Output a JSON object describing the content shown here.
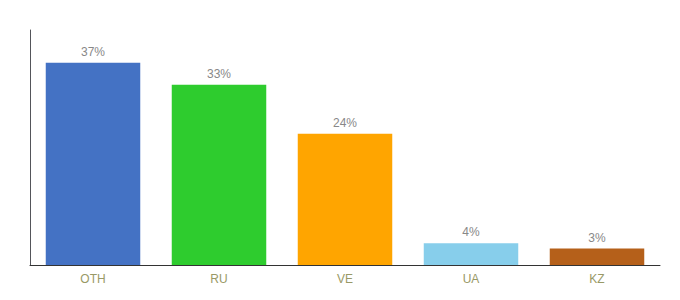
{
  "chart_data": {
    "type": "bar",
    "categories": [
      "OTH",
      "RU",
      "VE",
      "UA",
      "KZ"
    ],
    "values": [
      37,
      33,
      24,
      4,
      3
    ],
    "value_labels": [
      "37%",
      "33%",
      "24%",
      "4%",
      "3%"
    ],
    "colors": [
      "#4472C4",
      "#2ECC2E",
      "#FFA500",
      "#87CEEB",
      "#B5601A"
    ],
    "ylim": [
      0,
      43
    ],
    "data_labels": true,
    "tick_labels": "x",
    "grid": false
  }
}
